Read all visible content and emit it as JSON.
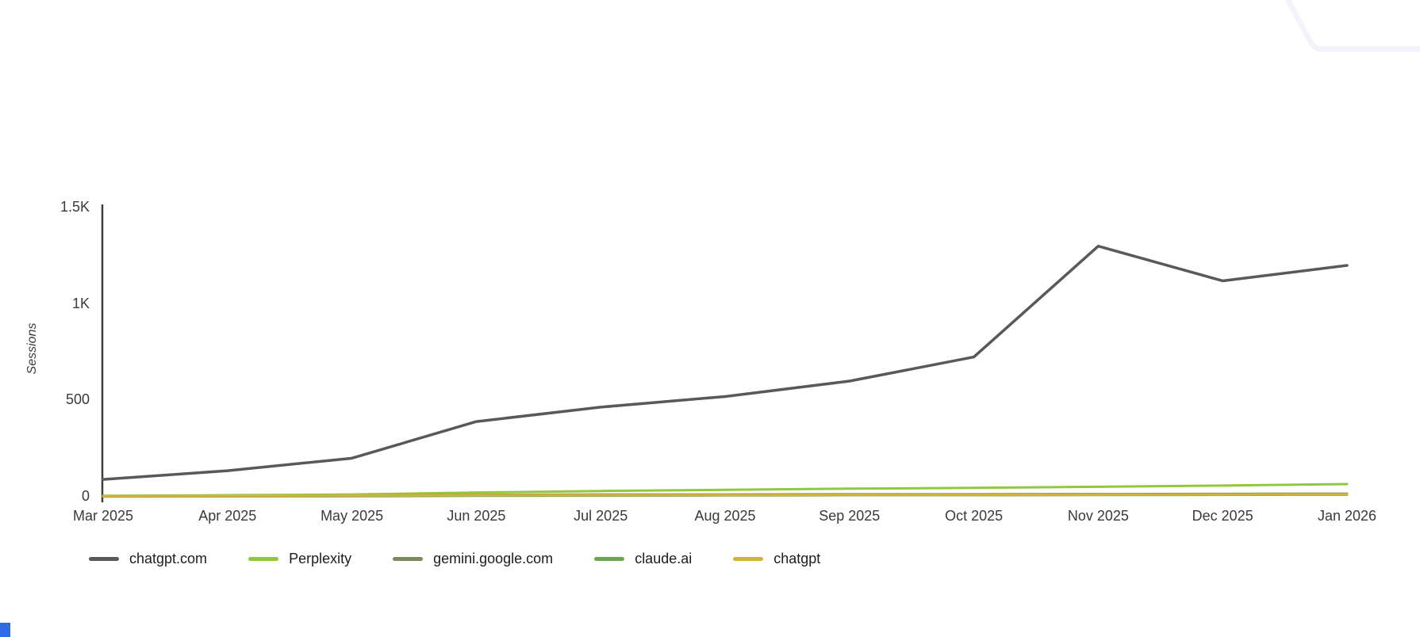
{
  "page": {
    "background": "#ffffff"
  },
  "decor": {
    "corner_outline_color": "#f3f3fb",
    "corner_accent_color": "#2f6be8"
  },
  "chart_data": {
    "type": "line",
    "title": "",
    "xlabel": "",
    "ylabel": "Sessions",
    "x": [
      "Mar 2025",
      "Apr 2025",
      "May 2025",
      "Jun 2025",
      "Jul 2025",
      "Aug 2025",
      "Sep 2025",
      "Oct 2025",
      "Nov 2025",
      "Dec 2025",
      "Jan 2026"
    ],
    "ylim": [
      0,
      1500
    ],
    "yticks": [
      0,
      500,
      1000,
      1500
    ],
    "ytick_labels": [
      "0",
      "500",
      "1K",
      "1.5K"
    ],
    "grid": false,
    "legend_position": "bottom-left",
    "axis_color": "#3d3d3d",
    "series": [
      {
        "name": "chatgpt.com",
        "color": "#595959",
        "stroke_width": 3.5,
        "values": [
          90,
          135,
          200,
          390,
          465,
          520,
          600,
          725,
          1300,
          1120,
          1200
        ]
      },
      {
        "name": "Perplexity",
        "color": "#92c83e",
        "stroke_width": 3,
        "values": [
          5,
          8,
          12,
          22,
          30,
          36,
          42,
          46,
          52,
          58,
          66
        ]
      },
      {
        "name": "gemini.google.com",
        "color": "#7b8b5d",
        "stroke_width": 3,
        "values": [
          2,
          3,
          5,
          10,
          12,
          12,
          13,
          13,
          14,
          15,
          16
        ]
      },
      {
        "name": "claude.ai",
        "color": "#6aa84f",
        "stroke_width": 3,
        "values": [
          1,
          2,
          3,
          5,
          6,
          7,
          8,
          8,
          9,
          10,
          11
        ]
      },
      {
        "name": "chatgpt",
        "color": "#d1b13f",
        "stroke_width": 3,
        "values": [
          3,
          4,
          6,
          8,
          9,
          9,
          10,
          10,
          11,
          12,
          13
        ]
      }
    ]
  }
}
